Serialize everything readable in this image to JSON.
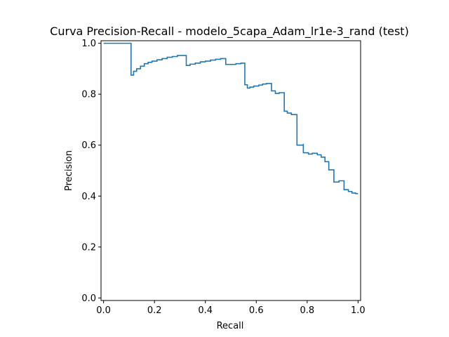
{
  "chart_data": {
    "type": "line",
    "title": "Curva Precision-Recall - modelo_5capa_Adam_lr1e-3_rand (test)",
    "xlabel": "Recall",
    "ylabel": "Precision",
    "xlim": [
      -0.01,
      1.01
    ],
    "ylim": [
      -0.01,
      1.01
    ],
    "xticks": [
      "0.0",
      "0.2",
      "0.4",
      "0.6",
      "0.8",
      "1.0"
    ],
    "yticks": [
      "0.0",
      "0.2",
      "0.4",
      "0.6",
      "0.8",
      "1.0"
    ],
    "grid": false,
    "legend": "none",
    "line_color": "#1f77b4",
    "drawstyle": "steps-post",
    "series": [
      {
        "x": [
          0.0,
          0.108,
          0.108,
          0.118,
          0.13,
          0.145,
          0.16,
          0.175,
          0.19,
          0.21,
          0.23,
          0.25,
          0.27,
          0.29,
          0.325,
          0.325,
          0.34,
          0.36,
          0.38,
          0.4,
          0.42,
          0.44,
          0.46,
          0.48,
          0.48,
          0.5,
          0.52,
          0.54,
          0.555,
          0.555,
          0.565,
          0.575,
          0.59,
          0.61,
          0.625,
          0.64,
          0.66,
          0.66,
          0.675,
          0.69,
          0.71,
          0.71,
          0.722,
          0.738,
          0.76,
          0.76,
          0.785,
          0.785,
          0.805,
          0.82,
          0.84,
          0.855,
          0.87,
          0.885,
          0.885,
          0.905,
          0.905,
          0.925,
          0.925,
          0.945,
          0.945,
          0.962,
          0.976,
          0.99,
          1.0
        ],
        "y": [
          1.0,
          1.0,
          0.875,
          0.89,
          0.9,
          0.91,
          0.92,
          0.925,
          0.93,
          0.935,
          0.94,
          0.945,
          0.948,
          0.952,
          0.952,
          0.913,
          0.918,
          0.922,
          0.927,
          0.93,
          0.934,
          0.937,
          0.94,
          0.94,
          0.917,
          0.917,
          0.92,
          0.922,
          0.922,
          0.837,
          0.824,
          0.828,
          0.832,
          0.836,
          0.84,
          0.842,
          0.842,
          0.813,
          0.803,
          0.806,
          0.806,
          0.733,
          0.726,
          0.72,
          0.72,
          0.6,
          0.605,
          0.57,
          0.565,
          0.568,
          0.562,
          0.553,
          0.535,
          0.535,
          0.503,
          0.503,
          0.455,
          0.457,
          0.46,
          0.46,
          0.425,
          0.418,
          0.412,
          0.41,
          0.41
        ]
      }
    ]
  }
}
